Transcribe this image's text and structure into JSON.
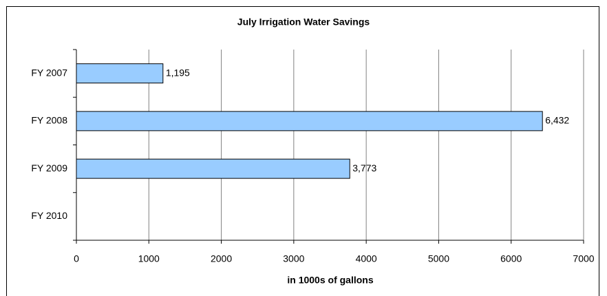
{
  "chart_data": {
    "type": "barh",
    "title": "July Irrigation Water Savings",
    "x_label": "in 1000s of gallons",
    "categories": [
      "FY 2007",
      "FY 2008",
      "FY 2009",
      "FY 2010"
    ],
    "values": [
      1195,
      6432,
      3773,
      null
    ],
    "value_labels": [
      "1,195",
      "6,432",
      "3,773",
      null
    ],
    "color": "#99ccff",
    "xlim": [
      0,
      7000
    ],
    "xticks": [
      0,
      1000,
      2000,
      3000,
      4000,
      5000,
      6000,
      7000
    ],
    "grid": true
  }
}
